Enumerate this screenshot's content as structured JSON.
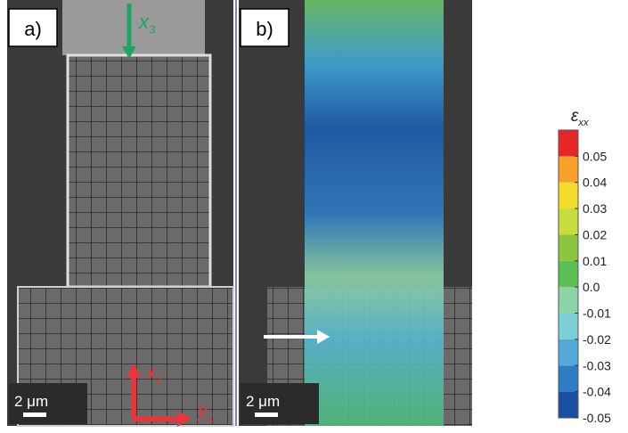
{
  "panels": [
    {
      "label": "a)",
      "scale_bar": "2 μm",
      "axes": [
        {
          "symbol": "x",
          "subscript": "3",
          "color": "#1fa463"
        },
        {
          "symbol": "x",
          "subscript": "1",
          "color": "#e8363a"
        },
        {
          "symbol": "y",
          "subscript": "1",
          "color": "#e8363a"
        }
      ]
    },
    {
      "label": "b)",
      "scale_bar": "2 μm"
    }
  ],
  "chart_data": {
    "type": "colorbar",
    "title": {
      "symbol": "ε",
      "subscript": "xx"
    },
    "ylim": [
      -0.05,
      0.06
    ],
    "yticks": [
      0.05,
      0.04,
      0.03,
      0.02,
      0.01,
      {
        "value": 0,
        "label": "0.0"
      },
      -0.01,
      -0.02,
      -0.03,
      -0.04,
      -0.05
    ],
    "colors": [
      "#1a4fa3",
      "#2f7cc4",
      "#54a9d8",
      "#7ccfd5",
      "#8fd3a9",
      "#5cbf55",
      "#8cc63f",
      "#c9dc3d",
      "#f4dd2a",
      "#f7a12a",
      "#e8262a"
    ]
  }
}
